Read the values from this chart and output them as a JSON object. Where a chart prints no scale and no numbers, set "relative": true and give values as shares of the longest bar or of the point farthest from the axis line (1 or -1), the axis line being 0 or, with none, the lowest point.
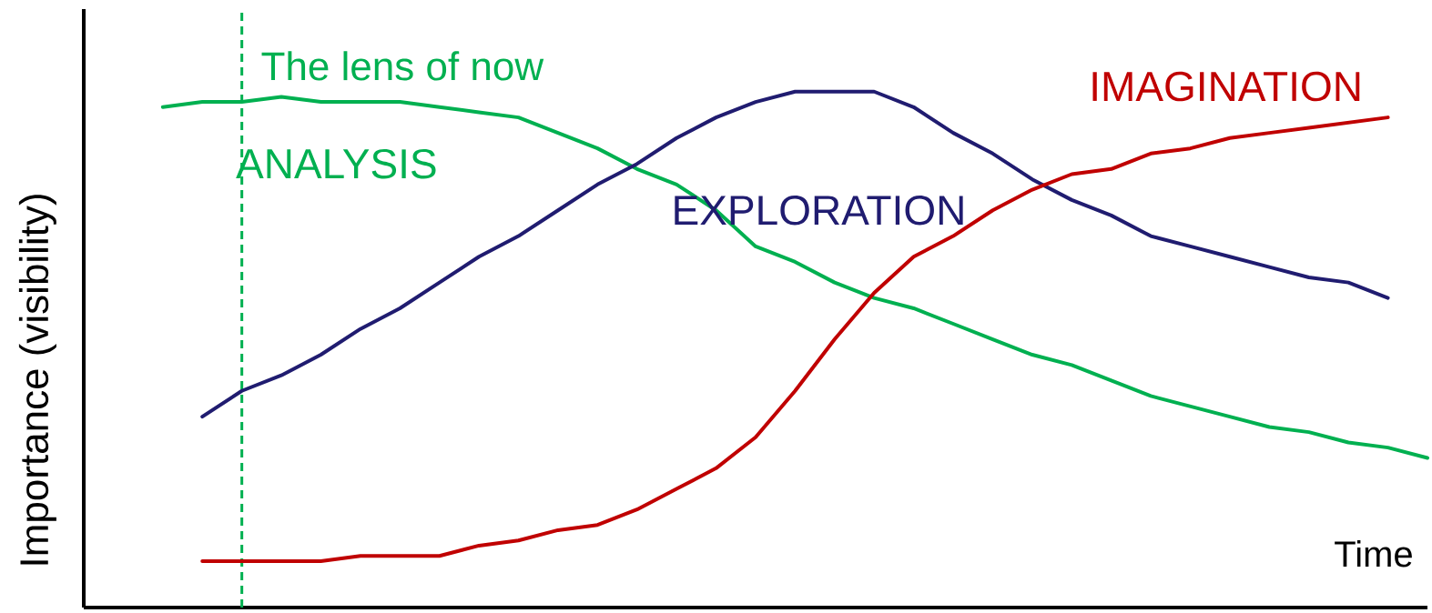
{
  "chart_data": {
    "type": "line",
    "relative": true,
    "xlabel": "Time",
    "ylabel": "Importance (visibility)",
    "categories": [
      null,
      null,
      null,
      null,
      null,
      null,
      null,
      null,
      null,
      null,
      null,
      null,
      null,
      null,
      null,
      null,
      null,
      null,
      null,
      null,
      null,
      null,
      null,
      null,
      null,
      null,
      null,
      null,
      null,
      null,
      null,
      null,
      null
    ],
    "series": [
      {
        "name": "ANALYSIS",
        "color": "#00b050",
        "values": [
          0.97,
          0.98,
          0.98,
          0.99,
          0.98,
          0.98,
          0.98,
          0.97,
          0.96,
          0.95,
          0.92,
          0.89,
          0.85,
          0.82,
          0.77,
          0.7,
          0.67,
          0.63,
          0.6,
          0.58,
          0.55,
          0.52,
          0.49,
          0.47,
          0.44,
          0.41,
          0.39,
          0.37,
          0.35,
          0.34,
          0.32,
          0.31,
          0.29
        ]
      },
      {
        "name": "EXPLORATION",
        "color": "#201c70",
        "values": [
          null,
          0.37,
          0.42,
          0.45,
          0.49,
          0.54,
          0.58,
          0.63,
          0.68,
          0.72,
          0.77,
          0.82,
          0.86,
          0.91,
          0.95,
          0.98,
          1.0,
          1.0,
          1.0,
          0.97,
          0.92,
          0.88,
          0.83,
          0.79,
          0.76,
          0.72,
          0.7,
          0.68,
          0.66,
          0.64,
          0.63,
          0.6,
          null
        ]
      },
      {
        "name": "IMAGINATION",
        "color": "#c00000",
        "values": [
          null,
          0.09,
          0.09,
          0.09,
          0.09,
          0.1,
          0.1,
          0.1,
          0.12,
          0.13,
          0.15,
          0.16,
          0.19,
          0.23,
          0.27,
          0.33,
          0.42,
          0.52,
          0.61,
          0.68,
          0.72,
          0.77,
          0.81,
          0.84,
          0.85,
          0.88,
          0.89,
          0.91,
          0.92,
          0.93,
          0.94,
          0.95,
          null
        ]
      }
    ],
    "annotations": [
      "The lens of now"
    ]
  }
}
